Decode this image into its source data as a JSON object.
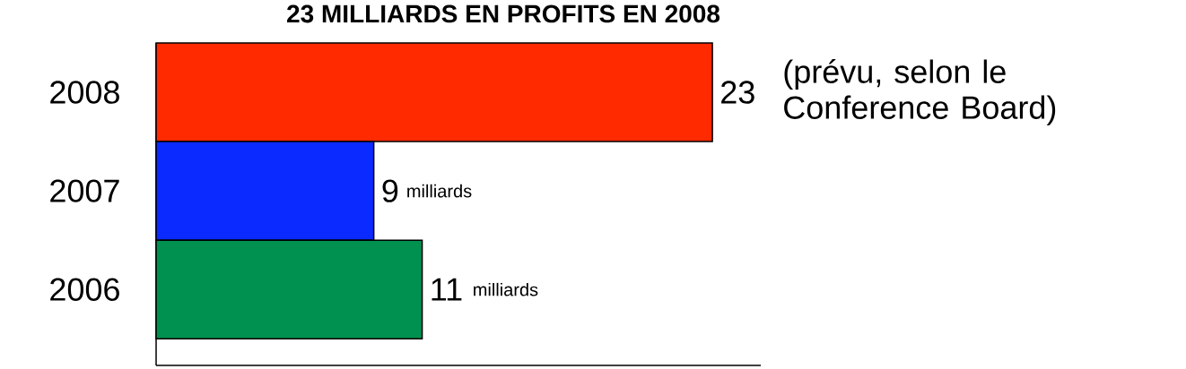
{
  "chart_data": {
    "type": "bar",
    "orientation": "horizontal",
    "title": "23 MILLIARDS EN PROFITS EN 2008",
    "categories": [
      "2008",
      "2007",
      "2006"
    ],
    "values": [
      23,
      9,
      11
    ],
    "colors": [
      "#ff2a00",
      "#0a2aff",
      "#009050"
    ],
    "xlim": [
      0,
      25
    ],
    "tick_labels": "y",
    "data_labels": true,
    "annotations": [
      {
        "text": "(prévu, selon le Conference Board)",
        "x": 23,
        "y": "2008"
      },
      {
        "text": "milliards",
        "x": 9,
        "y": "2007"
      },
      {
        "text": "milliards",
        "x": 11,
        "y": "2006"
      }
    ]
  }
}
